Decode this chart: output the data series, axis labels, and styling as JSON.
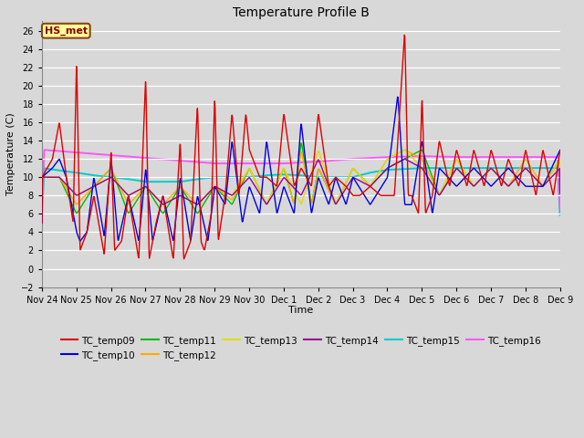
{
  "title": "Temperature Profile B",
  "xlabel": "Time",
  "ylabel": "Temperature (C)",
  "ylim": [
    -2,
    27
  ],
  "yticks": [
    -2,
    0,
    2,
    4,
    6,
    8,
    10,
    12,
    14,
    16,
    18,
    20,
    22,
    24,
    26
  ],
  "background_color": "#d8d8d8",
  "plot_bg_color": "#d8d8d8",
  "series_colors": {
    "TC_temp09": "#dd0000",
    "TC_temp10": "#0000dd",
    "TC_temp11": "#00bb00",
    "TC_temp12": "#ffaa00",
    "TC_temp13": "#dddd00",
    "TC_temp14": "#990099",
    "TC_temp15": "#00cccc",
    "TC_temp16": "#ff55ff"
  },
  "annotation_text": "HS_met",
  "tick_labels": [
    "Nov 24",
    "Nov 25",
    "Nov 26",
    "Nov 27",
    "Nov 28",
    "Nov 29",
    "Nov 30",
    "Dec 1",
    "Dec 2",
    "Dec 3",
    "Dec 4",
    "Dec 5",
    "Dec 6",
    "Dec 7",
    "Dec 8",
    "Dec 9"
  ]
}
